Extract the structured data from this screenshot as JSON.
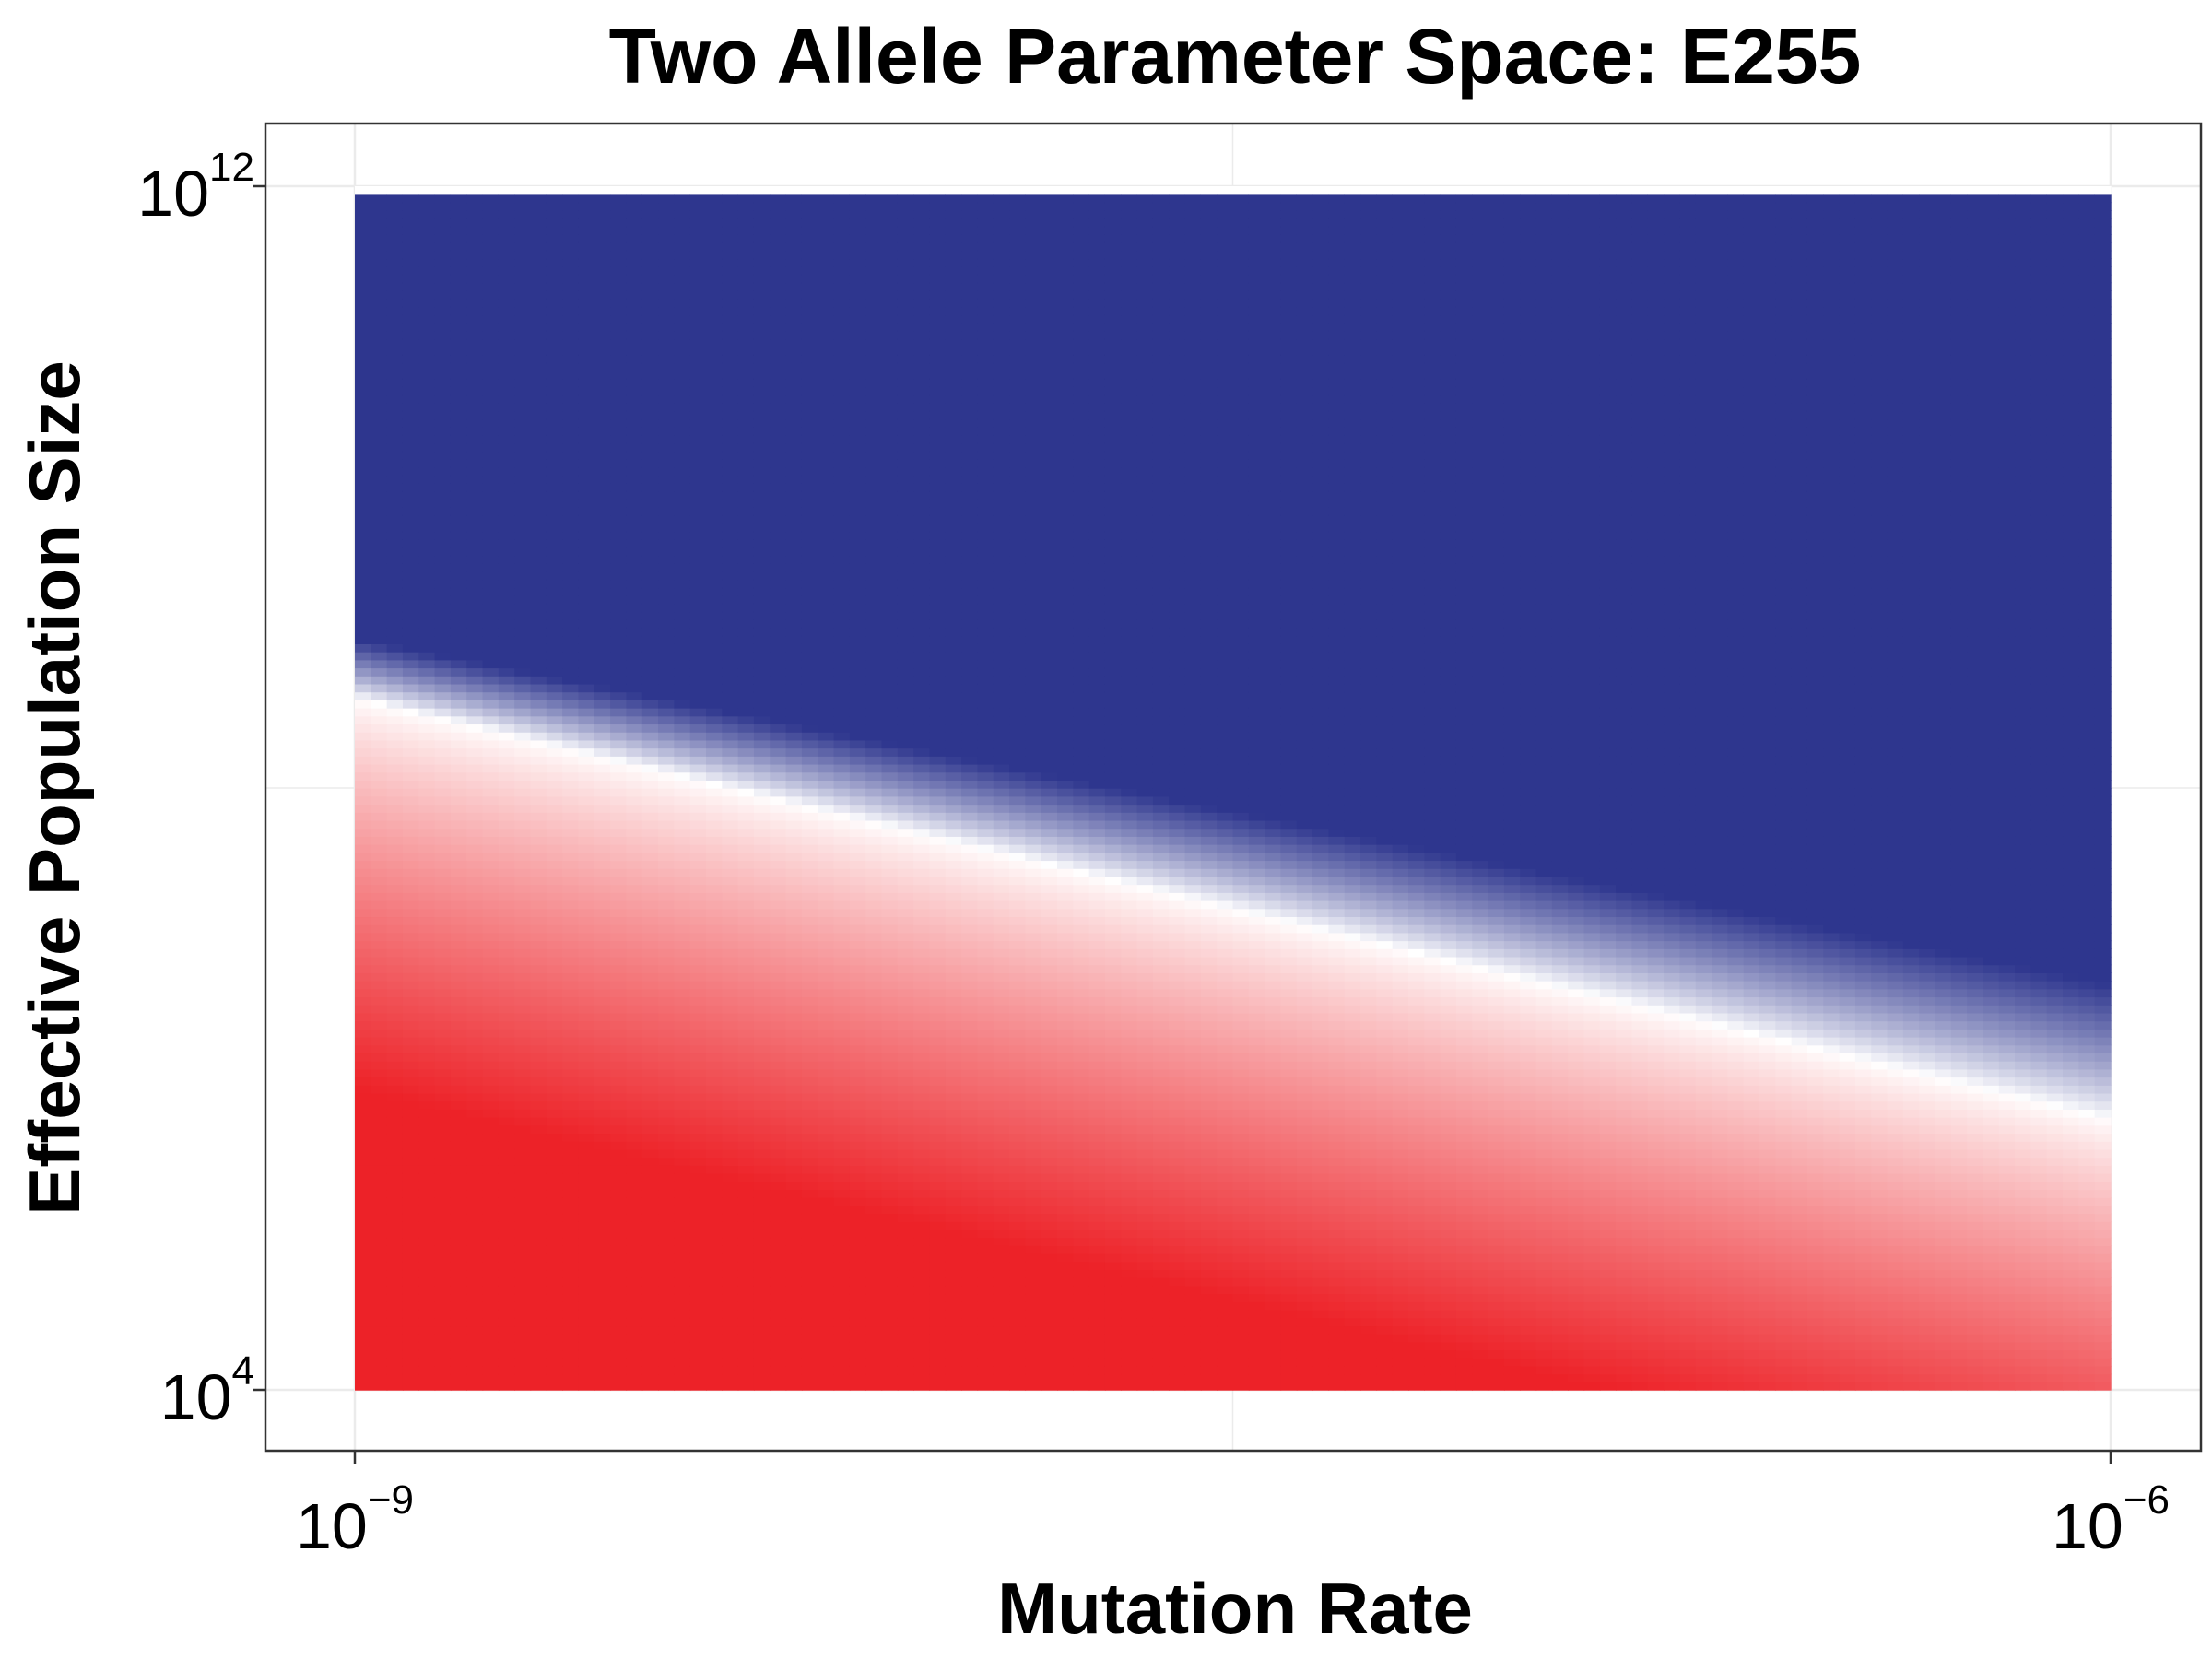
{
  "chart_data": {
    "type": "heatmap",
    "title": "Two Allele Parameter Space: E255",
    "xlabel": "Mutation Rate",
    "ylabel": "Effective Population Size",
    "x_scale": "log10",
    "y_scale": "log10",
    "xlim": [
      1e-09,
      1e-06
    ],
    "ylim": [
      10000.0,
      1000000000000.0
    ],
    "x_ticks": [
      {
        "value": 1e-09,
        "base": "10",
        "exp": "−9"
      },
      {
        "value": 1e-06,
        "base": "10",
        "exp": "−6"
      }
    ],
    "y_ticks": [
      {
        "value": 10000.0,
        "base": "10",
        "exp": "4"
      },
      {
        "value": 1000000000000.0,
        "base": "10",
        "exp": "12"
      }
    ],
    "colors": {
      "low": "#ED2228",
      "mid": "#FFFFFF",
      "high": "#2E368E"
    },
    "boundary_line": {
      "x": [
        1e-09,
        1e-06
      ],
      "log10_y": [
        8.6,
        5.8
      ]
    },
    "top_band_log10_y": 11.98,
    "grid": true,
    "legend": "none"
  }
}
